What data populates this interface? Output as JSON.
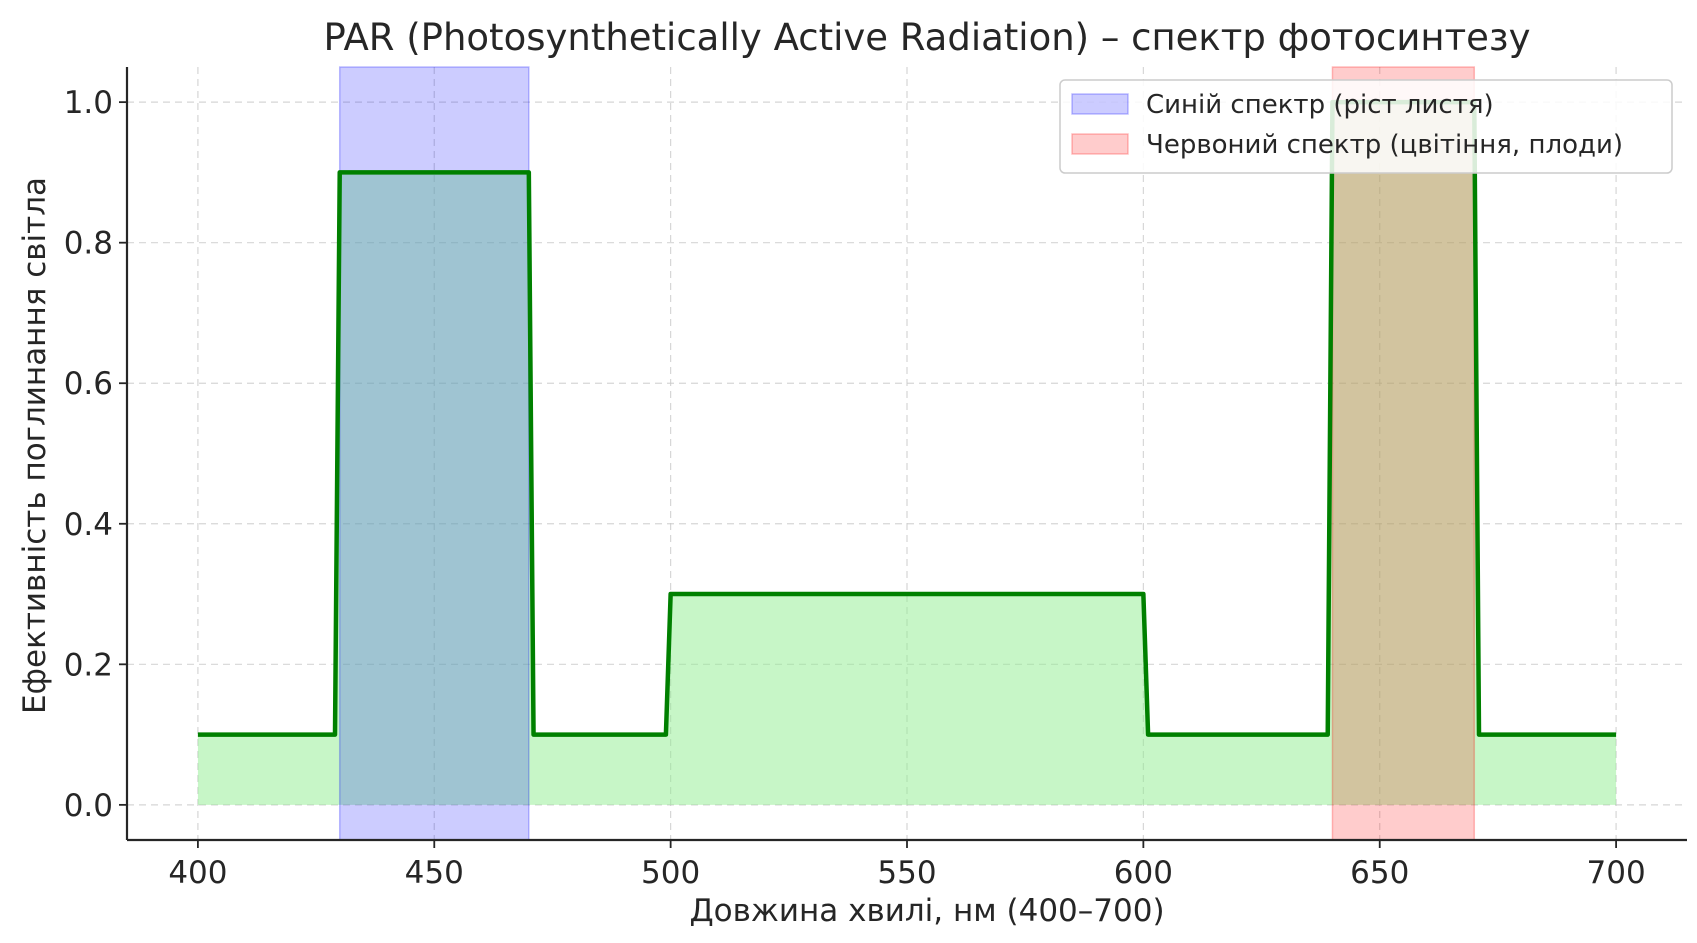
{
  "chart_data": {
    "type": "line",
    "title": "PAR (Photosynthetically Active Radiation) – спектр фотосинтезу",
    "xlabel": "Довжина хвилі, нм (400–700)",
    "ylabel": "Ефективність поглинання світла",
    "xlim": [
      385,
      715
    ],
    "ylim": [
      -0.05,
      1.05
    ],
    "xticks": [
      400,
      450,
      500,
      550,
      600,
      650,
      700
    ],
    "yticks": [
      0.0,
      0.2,
      0.4,
      0.6,
      0.8,
      1.0
    ],
    "ytick_labels": [
      "0.0",
      "0.2",
      "0.4",
      "0.6",
      "0.8",
      "1.0"
    ],
    "grid": true,
    "legend_position": "top-right",
    "series": [
      {
        "color": "#008000",
        "fill_color": "#90ee90",
        "x": [
          400,
          429,
          430,
          470,
          471,
          499,
          500,
          600,
          601,
          639,
          640,
          670,
          671,
          700
        ],
        "y": [
          0.1,
          0.1,
          0.9,
          0.9,
          0.1,
          0.1,
          0.3,
          0.3,
          0.1,
          0.1,
          1.0,
          1.0,
          0.1,
          0.1
        ]
      }
    ],
    "bands": [
      {
        "name": "Синій спектр (ріст листя)",
        "x_start": 430,
        "x_end": 470,
        "color": "#0000ff"
      },
      {
        "name": "Червоний спектр (цвітіння, плоди)",
        "x_start": 640,
        "x_end": 670,
        "color": "#ff0000"
      }
    ]
  }
}
